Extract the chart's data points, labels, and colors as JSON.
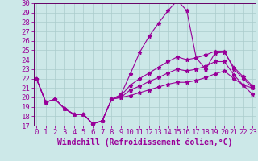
{
  "xlabel": "Windchill (Refroidissement éolien,°C)",
  "bg_color": "#cce8e8",
  "line_color": "#990099",
  "grid_color": "#aacccc",
  "spine_color": "#660066",
  "xmin": 0,
  "xmax": 23,
  "ymin": 17,
  "ymax": 30,
  "x": [
    0,
    1,
    2,
    3,
    4,
    5,
    6,
    7,
    8,
    9,
    10,
    11,
    12,
    13,
    14,
    15,
    16,
    17,
    18,
    19,
    20,
    21,
    22,
    23
  ],
  "line1": [
    22.0,
    19.5,
    19.8,
    18.8,
    18.2,
    18.2,
    17.2,
    17.5,
    19.8,
    20.3,
    22.5,
    24.8,
    26.5,
    27.9,
    29.2,
    30.3,
    29.2,
    24.2,
    23.0,
    24.7,
    24.8,
    23.2,
    22.2,
    21.2
  ],
  "line2": [
    22.0,
    19.5,
    19.8,
    18.8,
    18.2,
    18.2,
    17.2,
    17.5,
    19.8,
    20.2,
    21.3,
    22.0,
    22.6,
    23.2,
    23.8,
    24.3,
    24.0,
    24.2,
    24.5,
    24.9,
    24.9,
    23.0,
    22.0,
    21.0
  ],
  "line3": [
    22.0,
    19.5,
    19.8,
    18.8,
    18.2,
    18.2,
    17.2,
    17.5,
    19.8,
    20.0,
    20.8,
    21.2,
    21.7,
    22.1,
    22.6,
    23.0,
    22.8,
    23.0,
    23.3,
    23.8,
    23.8,
    22.4,
    21.3,
    20.3
  ],
  "line4": [
    22.0,
    19.5,
    19.8,
    18.8,
    18.2,
    18.2,
    17.2,
    17.5,
    19.8,
    20.0,
    20.2,
    20.5,
    20.8,
    21.1,
    21.4,
    21.6,
    21.6,
    21.8,
    22.1,
    22.5,
    22.8,
    22.0,
    21.3,
    21.0
  ],
  "tick_fontsize": 6.5,
  "label_fontsize": 7
}
